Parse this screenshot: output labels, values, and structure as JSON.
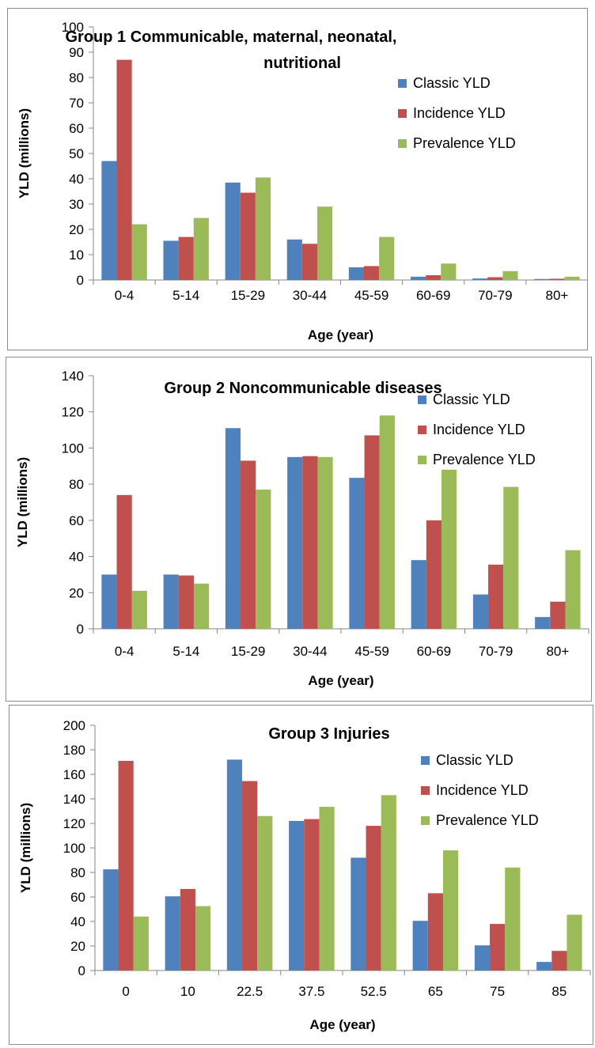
{
  "colors": {
    "classic": "#4f81bd",
    "incidence": "#c0504d",
    "prevalence": "#9bbb59",
    "axis": "#868686",
    "frame": "#8c8c8c"
  },
  "chart_data": [
    {
      "type": "bar",
      "title": "Group 1  Communicable, maternal, neonatal,",
      "title_line2": "nutritional",
      "xlabel": "Age (year)",
      "ylabel": "YLD (millions)",
      "ylim": [
        0,
        100
      ],
      "yticks": [
        "0",
        "10",
        "20",
        "30",
        "40",
        "50",
        "60",
        "70",
        "80",
        "90",
        "100"
      ],
      "categories": [
        "0-4",
        "5-14",
        "15-29",
        "30-44",
        "45-59",
        "60-69",
        "70-79",
        "80+"
      ],
      "legend_position": "top-right",
      "series": [
        {
          "name": "Classic YLD",
          "color": "#4f81bd",
          "values": [
            47,
            15.5,
            38.5,
            16,
            5,
            1.3,
            0.6,
            0.4
          ]
        },
        {
          "name": "Incidence YLD",
          "color": "#c0504d",
          "values": [
            87,
            17,
            34.5,
            14.3,
            5.5,
            1.9,
            1.1,
            0.5
          ]
        },
        {
          "name": "Prevalence YLD",
          "color": "#9bbb59",
          "values": [
            22,
            24.5,
            40.5,
            29,
            17,
            6.5,
            3.5,
            1.3
          ]
        }
      ]
    },
    {
      "type": "bar",
      "title": "Group 2  Noncommunicable diseases",
      "xlabel": "Age (year)",
      "ylabel": "YLD (millions)",
      "ylim": [
        0,
        140
      ],
      "yticks": [
        "0",
        "20",
        "40",
        "60",
        "80",
        "100",
        "120",
        "140"
      ],
      "categories": [
        "0-4",
        "5-14",
        "15-29",
        "30-44",
        "45-59",
        "60-69",
        "70-79",
        "80+"
      ],
      "legend_position": "top-right",
      "series": [
        {
          "name": "Classic YLD",
          "color": "#4f81bd",
          "values": [
            30,
            30,
            111,
            95,
            83.5,
            38,
            19,
            6.5
          ]
        },
        {
          "name": "Incidence YLD",
          "color": "#c0504d",
          "values": [
            74,
            29.5,
            93,
            95.5,
            107,
            60,
            35.5,
            15
          ]
        },
        {
          "name": "Prevalence YLD",
          "color": "#9bbb59",
          "values": [
            21,
            25,
            77,
            95,
            118,
            88,
            78.5,
            43.5
          ]
        }
      ]
    },
    {
      "type": "bar",
      "title": "Group 3  Injuries",
      "xlabel": "Age (year)",
      "ylabel": "YLD (millions)",
      "ylim": [
        0,
        200
      ],
      "yticks": [
        "0",
        "20",
        "40",
        "60",
        "80",
        "100",
        "120",
        "140",
        "160",
        "180",
        "200"
      ],
      "categories": [
        "0",
        "10",
        "22.5",
        "37.5",
        "52.5",
        "65",
        "75",
        "85"
      ],
      "legend_position": "top-right",
      "series": [
        {
          "name": "Classic YLD",
          "color": "#4f81bd",
          "values": [
            82.5,
            60.5,
            172,
            122,
            92,
            40.5,
            20.5,
            7
          ]
        },
        {
          "name": "Incidence YLD",
          "color": "#c0504d",
          "values": [
            171,
            66.5,
            154.5,
            123.5,
            118,
            63,
            38,
            16
          ]
        },
        {
          "name": "Prevalence YLD",
          "color": "#9bbb59",
          "values": [
            44,
            52.5,
            126,
            133.5,
            143,
            98,
            84,
            45.5
          ]
        }
      ]
    }
  ]
}
